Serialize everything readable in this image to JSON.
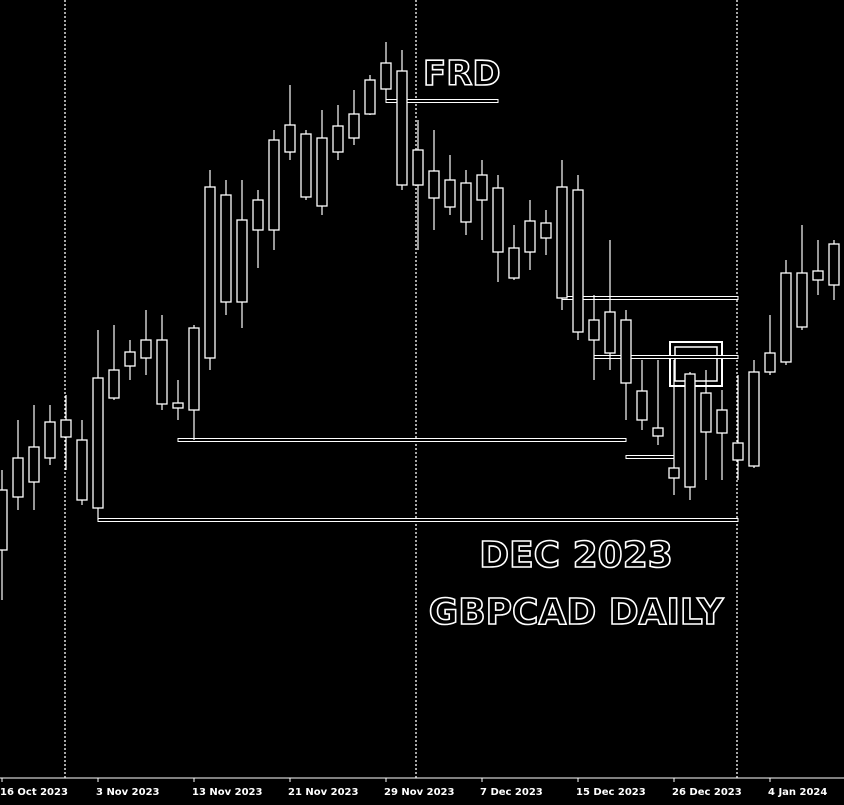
{
  "chart_data": {
    "type": "candlestick",
    "x": [
      "16 Oct 2023",
      null,
      null,
      null,
      null,
      null,
      "3 Nov 2023",
      null,
      null,
      null,
      null,
      null,
      "13 Nov 2023",
      null,
      null,
      null,
      null,
      null,
      "21 Nov 2023",
      null,
      null,
      null,
      null,
      null,
      "29 Nov 2023",
      null,
      null,
      null,
      null,
      null,
      "7 Dec 2023",
      null,
      null,
      null,
      null,
      null,
      "15 Dec 2023",
      null,
      null,
      null,
      null,
      null,
      "26 Dec 2023",
      null,
      null,
      null,
      null,
      null,
      "4 Jan 2024",
      null,
      null,
      null,
      null
    ],
    "open": [
      1.675,
      1.6803,
      1.6818,
      1.6842,
      1.688,
      1.686,
      1.6792,
      1.6902,
      1.6934,
      1.6942,
      1.696,
      1.6897,
      1.689,
      1.6942,
      1.7105,
      1.6998,
      1.707,
      1.707,
      1.7148,
      1.7166,
      1.7094,
      1.7148,
      1.7162,
      1.7186,
      1.7211,
      1.7229,
      1.715,
      1.7129,
      1.7093,
      1.7117,
      1.71,
      1.7112,
      1.7052,
      1.7048,
      1.7077,
      1.7002,
      1.711,
      1.698,
      1.6947,
      1.698,
      1.6909,
      1.6872,
      1.6832,
      1.6813,
      1.6907,
      1.6867,
      1.6857,
      1.6834,
      1.6928,
      1.6938,
      1.6973,
      1.7029,
      1.7015
    ],
    "high": [
      1.683,
      1.688,
      1.6895,
      1.6895,
      1.6905,
      1.688,
      1.697,
      1.6975,
      1.696,
      1.699,
      1.6985,
      1.692,
      1.6975,
      1.713,
      1.712,
      1.712,
      1.711,
      1.717,
      1.7215,
      1.717,
      1.719,
      1.7195,
      1.721,
      1.7225,
      1.7258,
      1.725,
      1.718,
      1.717,
      1.7145,
      1.713,
      1.714,
      1.7125,
      1.7075,
      1.71,
      1.709,
      1.714,
      1.7125,
      1.7005,
      1.706,
      1.699,
      1.694,
      1.694,
      1.694,
      1.6928,
      1.693,
      1.691,
      1.6925,
      1.694,
      1.6985,
      1.704,
      1.7075,
      1.706,
      1.706
    ],
    "low": [
      1.67,
      1.679,
      1.679,
      1.6835,
      1.683,
      1.6795,
      1.678,
      1.69,
      1.692,
      1.6925,
      1.689,
      1.688,
      1.686,
      1.693,
      1.6985,
      1.6972,
      1.7032,
      1.705,
      1.714,
      1.71,
      1.7085,
      1.714,
      1.7155,
      1.7185,
      1.72,
      1.711,
      1.705,
      1.707,
      1.7085,
      1.7065,
      1.706,
      1.7018,
      1.702,
      1.703,
      1.7045,
      1.699,
      1.696,
      1.692,
      1.693,
      1.688,
      1.687,
      1.6855,
      1.6805,
      1.68,
      1.682,
      1.682,
      1.682,
      1.6832,
      1.6925,
      1.6935,
      1.697,
      1.7005,
      1.7
    ],
    "close": [
      1.681,
      1.6842,
      1.6853,
      1.6878,
      1.6863,
      1.68,
      1.6922,
      1.693,
      1.6948,
      1.696,
      1.6896,
      1.6892,
      1.6972,
      1.7113,
      1.6998,
      1.708,
      1.71,
      1.716,
      1.7175,
      1.7103,
      1.7162,
      1.7174,
      1.7186,
      1.722,
      1.7237,
      1.7115,
      1.7115,
      1.7102,
      1.712,
      1.7078,
      1.7125,
      1.7048,
      1.7022,
      1.7079,
      1.7062,
      1.7113,
      1.6968,
      1.696,
      1.6988,
      1.6917,
      1.688,
      1.6864,
      1.6822,
      1.6926,
      1.6868,
      1.689,
      1.684,
      1.6928,
      1.6947,
      1.7027,
      1.7027,
      1.702,
      1.7056
    ],
    "color": "#ffffff",
    "ylim": [
      1.6525,
      1.73
    ],
    "levels": [
      {
        "value": 1.7199,
        "start": 24,
        "end": 31
      },
      {
        "value": 1.7002,
        "start": 35,
        "end": 46
      },
      {
        "value": 1.6943,
        "start": 37,
        "end": 46
      },
      {
        "value": 1.686,
        "start": 11,
        "end": 39
      },
      {
        "value": 1.6843,
        "start": 39,
        "end": 42
      },
      {
        "value": 1.678,
        "start": 6,
        "end": 46
      }
    ],
    "annotations": [
      "FRD",
      "DEC 2023",
      "GBPCAD DAILY"
    ]
  }
}
